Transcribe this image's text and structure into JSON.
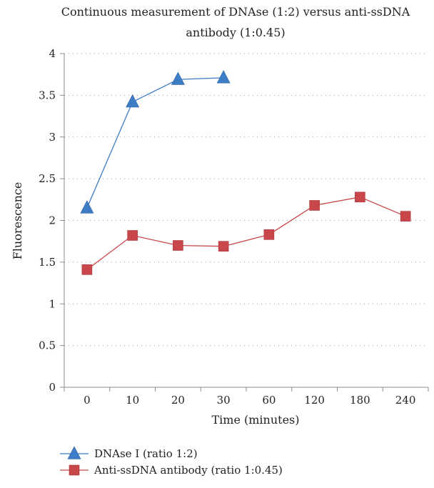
{
  "chart_data": {
    "type": "line",
    "title_lines": [
      "Continuous measurement of DNAse (1:2) versus anti-ssDNA",
      "antibody (1:0.45)"
    ],
    "xlabel": "Time (minutes)",
    "ylabel": "Fluorescence",
    "categories": [
      "0",
      "10",
      "20",
      "30",
      "60",
      "120",
      "180",
      "240"
    ],
    "ylim": [
      0,
      4
    ],
    "yticks": [
      "0",
      "0.5",
      "1",
      "1.5",
      "2",
      "2.5",
      "3",
      "3.5",
      "4"
    ],
    "grid": "horizontal dotted",
    "legend_position": "bottom",
    "series": [
      {
        "name": "DNAse I (ratio 1:2)",
        "marker": "triangle",
        "color": "#3d7dc6",
        "values": [
          2.15,
          3.42,
          3.69,
          3.71,
          null,
          null,
          null,
          null
        ]
      },
      {
        "name": "Anti-ssDNA antibody (ratio 1:0.45)",
        "marker": "square",
        "color": "#c9464a",
        "values": [
          1.41,
          1.82,
          1.7,
          1.69,
          1.83,
          2.18,
          2.28,
          2.05
        ]
      }
    ]
  }
}
